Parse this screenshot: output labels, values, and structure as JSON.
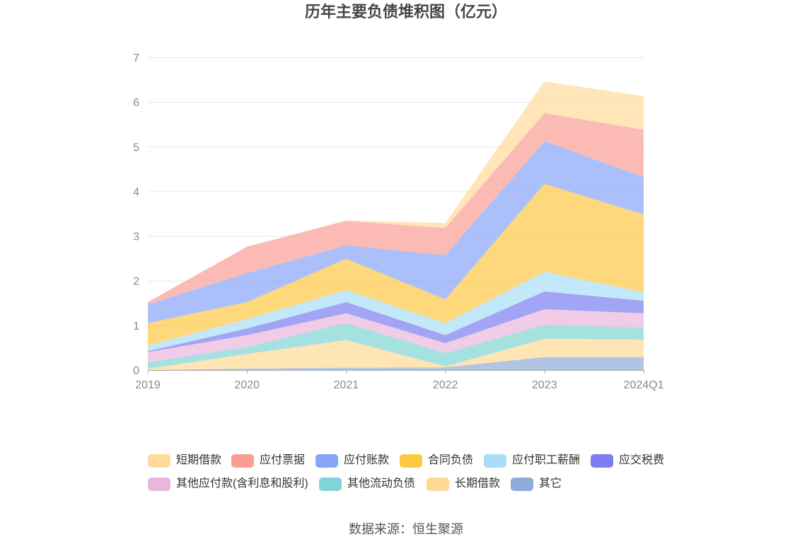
{
  "chart_data": {
    "type": "area",
    "stacked": true,
    "title": "历年主要负债堆积图（亿元）",
    "x": [
      "2019",
      "2020",
      "2021",
      "2022",
      "2023",
      "2024Q1"
    ],
    "ylim": [
      0,
      7
    ],
    "yticks": [
      0,
      1,
      2,
      3,
      4,
      5,
      6,
      7
    ],
    "grid": true,
    "legend": "bottom",
    "series": [
      {
        "name": "短期借款",
        "color": "#ffda99",
        "values": [
          0.0,
          0.0,
          0.01,
          0.11,
          0.71,
          0.75
        ]
      },
      {
        "name": "应付票据",
        "color": "#fa9e94",
        "values": [
          0.05,
          0.59,
          0.55,
          0.61,
          0.63,
          1.06
        ]
      },
      {
        "name": "应付账款",
        "color": "#87a5f8",
        "values": [
          0.42,
          0.65,
          0.3,
          0.99,
          0.95,
          0.84
        ]
      },
      {
        "name": "合同负债",
        "color": "#fec843",
        "values": [
          0.5,
          0.38,
          0.7,
          0.53,
          1.97,
          1.74
        ]
      },
      {
        "name": "应付职工薪酬",
        "color": "#a8def8",
        "values": [
          0.13,
          0.21,
          0.27,
          0.27,
          0.44,
          0.19
        ]
      },
      {
        "name": "应交税费",
        "color": "#7b7df0",
        "values": [
          0.02,
          0.15,
          0.25,
          0.18,
          0.4,
          0.28
        ]
      },
      {
        "name": "其他应付款(含利息和股利)",
        "color": "#eab7dc",
        "values": [
          0.23,
          0.26,
          0.22,
          0.22,
          0.35,
          0.32
        ]
      },
      {
        "name": "其他流动负债",
        "color": "#80d4d5",
        "values": [
          0.14,
          0.16,
          0.38,
          0.3,
          0.31,
          0.27
        ]
      },
      {
        "name": "长期借款",
        "color": "#ffd894",
        "values": [
          0.03,
          0.33,
          0.62,
          0.02,
          0.41,
          0.39
        ]
      },
      {
        "name": "其它",
        "color": "#8fadd9",
        "values": [
          0.0,
          0.03,
          0.05,
          0.06,
          0.29,
          0.29
        ]
      }
    ]
  },
  "source": "数据来源：恒生聚源"
}
